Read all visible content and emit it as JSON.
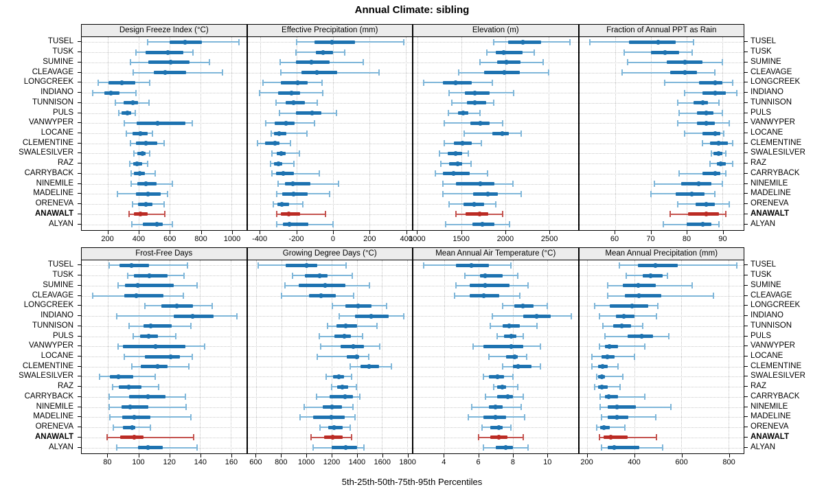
{
  "title": "Annual Climate: sibling",
  "caption": "5th-25th-50th-75th-95th Percentiles",
  "stations": [
    "TUSEL",
    "TUSK",
    "SUMINE",
    "CLEAVAGE",
    "LONGCREEK",
    "INDIANO",
    "TUNNISON",
    "PULS",
    "VANWYPER",
    "LOCANE",
    "CLEMENTINE",
    "SWALESILVER",
    "RAZ",
    "CARRYBACK",
    "NINEMILE",
    "MADELINE",
    "ORENEVA",
    "ANAWALT",
    "ALYAN"
  ],
  "highlight_station": "ANAWALT",
  "percentiles": [
    5,
    25,
    50,
    75,
    95
  ],
  "colors": {
    "series_blue": "#1d72b0",
    "series_blue_light": "#7eb6d9",
    "highlight_red": "#bb2b24",
    "highlight_red_light": "#c4524e",
    "header_bg": "#ececec",
    "grid": "#c9c9c9",
    "border": "#000000"
  },
  "chart_data": [
    {
      "type": "interval",
      "panel_title": "Design Freeze Index (°C)",
      "grid_row": "top",
      "grid_col": 0,
      "xlim": [
        30,
        1095
      ],
      "ticks": [
        200,
        400,
        600,
        800,
        1000
      ],
      "values": [
        [
          455,
          600,
          700,
          810,
          1050
        ],
        [
          380,
          445,
          590,
          690,
          750
        ],
        [
          345,
          460,
          605,
          730,
          855
        ],
        [
          365,
          495,
          570,
          705,
          940
        ],
        [
          135,
          205,
          290,
          375,
          470
        ],
        [
          100,
          175,
          220,
          275,
          380
        ],
        [
          250,
          300,
          360,
          395,
          465
        ],
        [
          270,
          290,
          325,
          350,
          375
        ],
        [
          305,
          385,
          520,
          700,
          745
        ],
        [
          320,
          360,
          410,
          455,
          490
        ],
        [
          345,
          380,
          445,
          520,
          565
        ],
        [
          370,
          390,
          425,
          445,
          470
        ],
        [
          340,
          365,
          390,
          420,
          455
        ],
        [
          350,
          370,
          405,
          440,
          505
        ],
        [
          350,
          390,
          445,
          515,
          615
        ],
        [
          260,
          380,
          460,
          540,
          585
        ],
        [
          360,
          395,
          445,
          490,
          565
        ],
        [
          335,
          370,
          410,
          455,
          570
        ],
        [
          355,
          425,
          515,
          555,
          615
        ]
      ]
    },
    {
      "type": "interval",
      "panel_title": "Effective Precipitation (mm)",
      "grid_row": "top",
      "grid_col": 1,
      "xlim": [
        -470,
        435
      ],
      "ticks": [
        -400,
        -200,
        0,
        200,
        400
      ],
      "values": [
        [
          -200,
          -100,
          -5,
          120,
          390
        ],
        [
          -205,
          -95,
          -55,
          0,
          65
        ],
        [
          -290,
          -205,
          -120,
          -20,
          165
        ],
        [
          -285,
          -175,
          -90,
          25,
          255
        ],
        [
          -385,
          -285,
          -195,
          -140,
          -60
        ],
        [
          -405,
          -300,
          -230,
          -180,
          -55
        ],
        [
          -315,
          -260,
          -215,
          -155,
          -85
        ],
        [
          -295,
          -205,
          -115,
          -65,
          20
        ],
        [
          -370,
          -320,
          -260,
          -210,
          -100
        ],
        [
          -340,
          -325,
          -295,
          -255,
          -145
        ],
        [
          -415,
          -375,
          -320,
          -295,
          -235
        ],
        [
          -335,
          -310,
          -285,
          -260,
          -185
        ],
        [
          -345,
          -325,
          -300,
          -280,
          -215
        ],
        [
          -335,
          -315,
          -275,
          -215,
          -75
        ],
        [
          -300,
          -265,
          -220,
          -125,
          30
        ],
        [
          -310,
          -280,
          -215,
          -140,
          -20
        ],
        [
          -330,
          -305,
          -280,
          -240,
          -165
        ],
        [
          -310,
          -285,
          -245,
          -180,
          -40
        ],
        [
          -310,
          -275,
          -240,
          -135,
          0
        ]
      ]
    },
    {
      "type": "interval",
      "panel_title": "Elevation (m)",
      "grid_row": "top",
      "grid_col": 2,
      "xlim": [
        950,
        2830
      ],
      "ticks": [
        1000,
        1500,
        2000,
        2500
      ],
      "values": [
        [
          1865,
          2030,
          2200,
          2410,
          2740
        ],
        [
          1790,
          1890,
          1980,
          2200,
          2330
        ],
        [
          1715,
          1905,
          2015,
          2175,
          2435
        ],
        [
          1470,
          1760,
          1990,
          2165,
          2500
        ],
        [
          1070,
          1290,
          1435,
          1615,
          1850
        ],
        [
          1355,
          1540,
          1650,
          1825,
          2095
        ],
        [
          1390,
          1565,
          1655,
          1780,
          1865
        ],
        [
          1350,
          1460,
          1520,
          1580,
          1715
        ],
        [
          1305,
          1605,
          1715,
          1825,
          1970
        ],
        [
          1530,
          1850,
          1970,
          2045,
          2180
        ],
        [
          1305,
          1410,
          1510,
          1615,
          1730
        ],
        [
          1250,
          1345,
          1435,
          1510,
          1580
        ],
        [
          1265,
          1355,
          1455,
          1510,
          1610
        ],
        [
          1200,
          1290,
          1410,
          1590,
          1800
        ],
        [
          1290,
          1435,
          1715,
          1875,
          2085
        ],
        [
          1285,
          1635,
          1800,
          1915,
          2180
        ],
        [
          1355,
          1520,
          1645,
          1760,
          1895
        ],
        [
          1435,
          1545,
          1705,
          1805,
          1970
        ],
        [
          1320,
          1625,
          1740,
          1875,
          2050
        ]
      ]
    },
    {
      "type": "interval",
      "panel_title": "Fraction of Annual PPT as Rain",
      "grid_row": "top",
      "grid_col": 3,
      "xlim": [
        50,
        96
      ],
      "ticks": [
        60,
        70,
        80,
        90
      ],
      "values": [
        [
          53,
          64,
          72,
          77,
          82
        ],
        [
          62.5,
          70,
          74,
          78,
          81.5
        ],
        [
          63.5,
          74.5,
          79.5,
          84.5,
          90
        ],
        [
          62,
          75.5,
          79.5,
          83,
          88
        ],
        [
          74,
          83.5,
          88,
          90,
          93
        ],
        [
          79.5,
          84.5,
          88,
          91,
          94
        ],
        [
          77.5,
          82,
          84.5,
          86,
          89
        ],
        [
          78,
          83,
          85.5,
          87.5,
          90
        ],
        [
          77.5,
          83,
          85.5,
          88,
          92
        ],
        [
          79.5,
          84.5,
          88,
          89.5,
          90.5
        ],
        [
          84.5,
          86.5,
          89,
          91.5,
          93
        ],
        [
          87,
          87.5,
          89,
          90,
          91
        ],
        [
          86.5,
          88.5,
          89.5,
          91,
          93
        ],
        [
          78,
          84.5,
          88,
          89.5,
          91
        ],
        [
          71,
          78.5,
          83.5,
          87,
          90
        ],
        [
          70,
          77,
          81.5,
          85,
          88
        ],
        [
          77.5,
          82.5,
          85.5,
          88,
          92
        ],
        [
          75.5,
          80.5,
          85.5,
          89,
          91
        ],
        [
          73.5,
          80,
          84.5,
          87,
          89
        ]
      ]
    },
    {
      "type": "interval",
      "panel_title": "Frost-Free Days",
      "grid_row": "bottom",
      "grid_col": 0,
      "xlim": [
        63,
        170
      ],
      "ticks": [
        80,
        100,
        120,
        140,
        160
      ],
      "values": [
        [
          81,
          87.5,
          95.5,
          107,
          132
        ],
        [
          93,
          97,
          107,
          119,
          129.5
        ],
        [
          86.5,
          91,
          99.5,
          123,
          138
        ],
        [
          70,
          90.5,
          98.5,
          116,
          129
        ],
        [
          104,
          115,
          125,
          135.5,
          148
        ],
        [
          86,
          123,
          135,
          149,
          164
        ],
        [
          94,
          103,
          108,
          121.5,
          134
        ],
        [
          96.5,
          101,
          106.5,
          112.5,
          124
        ],
        [
          86.5,
          90,
          111,
          130.5,
          143
        ],
        [
          90.5,
          104,
          121,
          127,
          135
        ],
        [
          95.5,
          101.5,
          112.5,
          119,
          132.5
        ],
        [
          74.5,
          81.5,
          87,
          96.5,
          111
        ],
        [
          83,
          87,
          93.5,
          102,
          113
        ],
        [
          81,
          94,
          106,
          117.5,
          130.5
        ],
        [
          81,
          89,
          94.5,
          106.5,
          131
        ],
        [
          81.5,
          89.5,
          97,
          107.5,
          134
        ],
        [
          83.5,
          90,
          96,
          98,
          107.5
        ],
        [
          79.5,
          88,
          97,
          103,
          136
        ],
        [
          86,
          99.5,
          106,
          115.5,
          138
        ]
      ]
    },
    {
      "type": "interval",
      "panel_title": "Growing Degree Days (°C)",
      "grid_row": "bottom",
      "grid_col": 1,
      "xlim": [
        530,
        1840
      ],
      "ticks": [
        600,
        800,
        1000,
        1200,
        1400,
        1600,
        1800
      ],
      "values": [
        [
          615,
          835,
          1000,
          1085,
          1315
        ],
        [
          890,
          985,
          1105,
          1170,
          1365
        ],
        [
          830,
          940,
          1150,
          1310,
          1500
        ],
        [
          800,
          1020,
          1115,
          1235,
          1375
        ],
        [
          1205,
          1310,
          1410,
          1515,
          1640
        ],
        [
          1260,
          1385,
          1515,
          1655,
          1775
        ],
        [
          1165,
          1240,
          1310,
          1400,
          1560
        ],
        [
          1100,
          1220,
          1300,
          1355,
          1445
        ],
        [
          1110,
          1270,
          1375,
          1455,
          1585
        ],
        [
          1085,
          1320,
          1400,
          1420,
          1495
        ],
        [
          1345,
          1430,
          1500,
          1580,
          1675
        ],
        [
          1155,
          1210,
          1260,
          1300,
          1360
        ],
        [
          1200,
          1245,
          1285,
          1330,
          1395
        ],
        [
          1080,
          1185,
          1305,
          1370,
          1425
        ],
        [
          980,
          1130,
          1205,
          1280,
          1370
        ],
        [
          950,
          1055,
          1195,
          1305,
          1385
        ],
        [
          1105,
          1170,
          1220,
          1285,
          1345
        ],
        [
          1035,
          1140,
          1210,
          1290,
          1360
        ],
        [
          1055,
          1200,
          1310,
          1400,
          1455
        ]
      ]
    },
    {
      "type": "interval",
      "panel_title": "Mean Annual Air Temperature (°C)",
      "grid_row": "bottom",
      "grid_col": 2,
      "xlim": [
        2.2,
        11.8
      ],
      "ticks": [
        4,
        6,
        8,
        10
      ],
      "values": [
        [
          2.8,
          4.7,
          5.6,
          6.6,
          7.9
        ],
        [
          5.2,
          6.1,
          6.4,
          7.4,
          8.3
        ],
        [
          4.7,
          5.5,
          6.4,
          7.8,
          8.9
        ],
        [
          4.6,
          5.5,
          6.3,
          7.2,
          8.4
        ],
        [
          7.4,
          8.1,
          8.6,
          9.2,
          10.0
        ],
        [
          6.8,
          8.6,
          9.4,
          10.2,
          11.4
        ],
        [
          6.7,
          7.4,
          7.8,
          8.4,
          9.4
        ],
        [
          7.1,
          7.5,
          7.9,
          8.2,
          8.6
        ],
        [
          5.7,
          6.3,
          7.9,
          8.6,
          9.6
        ],
        [
          6.6,
          7.6,
          8.1,
          8.3,
          8.8
        ],
        [
          7.4,
          8.0,
          8.3,
          9.1,
          9.6
        ],
        [
          6.3,
          6.6,
          7.1,
          7.5,
          8.0
        ],
        [
          6.9,
          7.1,
          7.4,
          7.6,
          8.3
        ],
        [
          6.4,
          7.1,
          7.7,
          8.0,
          8.6
        ],
        [
          5.6,
          6.6,
          7.0,
          7.4,
          8.5
        ],
        [
          5.4,
          6.3,
          7.0,
          7.6,
          8.7
        ],
        [
          6.2,
          6.7,
          7.2,
          7.4,
          7.9
        ],
        [
          6.0,
          6.7,
          7.2,
          7.7,
          8.6
        ],
        [
          6.3,
          7.0,
          7.6,
          8.0,
          8.9
        ]
      ]
    },
    {
      "type": "interval",
      "panel_title": "Mean Annual Precipitation (mm)",
      "grid_row": "bottom",
      "grid_col": 3,
      "xlim": [
        165,
        865
      ],
      "ticks": [
        200,
        400,
        600,
        800
      ],
      "values": [
        [
          335,
          415,
          490,
          585,
          835
        ],
        [
          365,
          435,
          470,
          520,
          540
        ],
        [
          285,
          350,
          415,
          490,
          645
        ],
        [
          285,
          360,
          420,
          515,
          735
        ],
        [
          230,
          295,
          390,
          460,
          500
        ],
        [
          250,
          320,
          355,
          400,
          495
        ],
        [
          265,
          310,
          345,
          385,
          435
        ],
        [
          275,
          370,
          430,
          480,
          545
        ],
        [
          250,
          275,
          295,
          330,
          445
        ],
        [
          220,
          260,
          285,
          315,
          400
        ],
        [
          220,
          245,
          265,
          285,
          330
        ],
        [
          240,
          245,
          260,
          275,
          350
        ],
        [
          230,
          245,
          260,
          285,
          340
        ],
        [
          255,
          275,
          290,
          330,
          445
        ],
        [
          255,
          285,
          325,
          405,
          555
        ],
        [
          260,
          285,
          325,
          375,
          490
        ],
        [
          240,
          255,
          270,
          295,
          360
        ],
        [
          250,
          270,
          300,
          370,
          495
        ],
        [
          260,
          285,
          315,
          420,
          520
        ]
      ]
    }
  ]
}
